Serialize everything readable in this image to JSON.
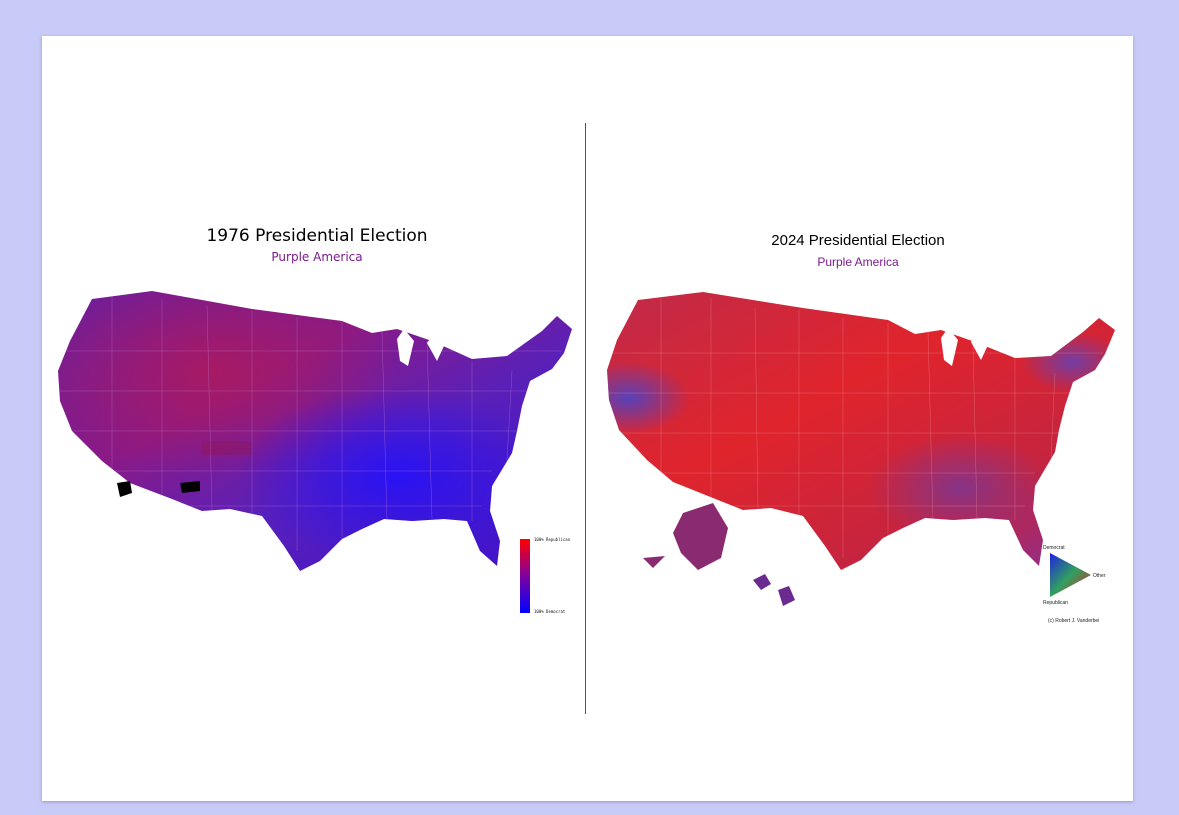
{
  "maps": {
    "left": {
      "title": "1976 Presidential Election",
      "subtitle": "Purple America",
      "legend": {
        "top_label": "100% Republican",
        "bottom_label": "100% Democrat"
      }
    },
    "right": {
      "title": "2024 Presidential Election",
      "subtitle": "Purple America",
      "legend": {
        "top_label": "Democrat",
        "right_label": "Other",
        "bottom_label": "Republican"
      },
      "credit": "(c) Robert J. Vanderbei"
    }
  },
  "colors": {
    "background": "#c8caf7",
    "page": "#ffffff",
    "republican": "#ff1010",
    "democrat": "#1010ff",
    "other": "#10c010",
    "purple_1976": "#7a1fa0",
    "red_2024": "#d8242f",
    "subtitle": "#7a1a8e"
  }
}
